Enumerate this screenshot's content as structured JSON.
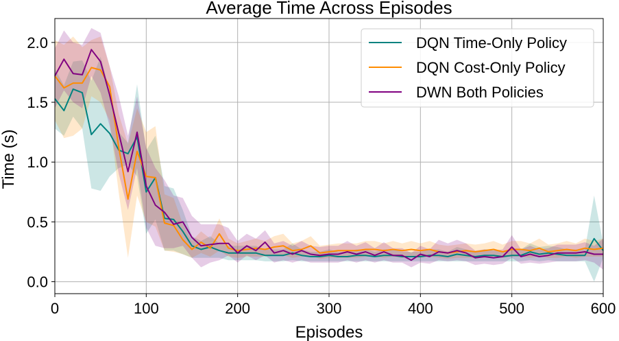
{
  "chart_data": {
    "type": "line",
    "title": "Average Time Across Episodes",
    "xlabel": "Episodes",
    "ylabel": "Time (s)",
    "xlim": [
      0,
      600
    ],
    "ylim": [
      -0.1,
      2.2
    ],
    "xticks": [
      0,
      100,
      200,
      300,
      400,
      500,
      600
    ],
    "xtick_labels": [
      "0",
      "100",
      "200",
      "300",
      "400",
      "500",
      "600"
    ],
    "yticks": [
      0.0,
      0.5,
      1.0,
      1.5,
      2.0
    ],
    "ytick_labels": [
      "0.0",
      "0.5",
      "1.0",
      "1.5",
      "2.0"
    ],
    "grid": true,
    "legend_position": "upper-right",
    "x": [
      0,
      10,
      20,
      30,
      40,
      50,
      60,
      70,
      80,
      90,
      100,
      110,
      120,
      130,
      140,
      150,
      160,
      170,
      180,
      190,
      200,
      210,
      220,
      230,
      240,
      250,
      260,
      270,
      280,
      290,
      300,
      310,
      320,
      330,
      340,
      350,
      360,
      370,
      380,
      390,
      400,
      410,
      420,
      430,
      440,
      450,
      460,
      470,
      480,
      490,
      500,
      510,
      520,
      530,
      540,
      550,
      560,
      570,
      580,
      590,
      600
    ],
    "series": [
      {
        "name": "DQN Time-Only Policy",
        "color": "#00827F",
        "values": [
          1.53,
          1.43,
          1.61,
          1.58,
          1.23,
          1.32,
          1.24,
          1.1,
          1.07,
          1.21,
          0.75,
          0.87,
          0.53,
          0.52,
          0.42,
          0.3,
          0.27,
          0.29,
          0.26,
          0.24,
          0.24,
          0.24,
          0.24,
          0.22,
          0.22,
          0.22,
          0.24,
          0.22,
          0.21,
          0.21,
          0.22,
          0.21,
          0.21,
          0.22,
          0.22,
          0.21,
          0.22,
          0.22,
          0.21,
          0.21,
          0.21,
          0.22,
          0.22,
          0.21,
          0.23,
          0.22,
          0.21,
          0.22,
          0.22,
          0.21,
          0.22,
          0.22,
          0.25,
          0.23,
          0.24,
          0.23,
          0.22,
          0.22,
          0.22,
          0.36,
          0.26
        ],
        "lower": [
          1.28,
          1.22,
          1.38,
          1.28,
          0.78,
          0.76,
          0.88,
          0.95,
          0.98,
          0.88,
          0.4,
          0.52,
          0.26,
          0.26,
          0.23,
          0.2,
          0.2,
          0.2,
          0.2,
          0.18,
          0.18,
          0.18,
          0.18,
          0.17,
          0.17,
          0.17,
          0.18,
          0.17,
          0.17,
          0.17,
          0.17,
          0.17,
          0.17,
          0.17,
          0.17,
          0.17,
          0.17,
          0.17,
          0.17,
          0.17,
          0.17,
          0.17,
          0.17,
          0.17,
          0.17,
          0.17,
          0.17,
          0.17,
          0.17,
          0.17,
          0.17,
          0.17,
          0.18,
          0.17,
          0.18,
          0.17,
          0.17,
          0.17,
          0.17,
          0.0,
          0.2
        ],
        "upper": [
          1.78,
          1.64,
          1.84,
          1.85,
          1.68,
          1.88,
          1.6,
          1.25,
          1.16,
          1.65,
          1.1,
          1.22,
          0.8,
          0.78,
          0.6,
          0.38,
          0.34,
          0.38,
          0.32,
          0.3,
          0.3,
          0.3,
          0.3,
          0.27,
          0.27,
          0.27,
          0.32,
          0.27,
          0.25,
          0.25,
          0.27,
          0.25,
          0.25,
          0.27,
          0.27,
          0.25,
          0.27,
          0.27,
          0.25,
          0.25,
          0.25,
          0.27,
          0.27,
          0.25,
          0.29,
          0.27,
          0.25,
          0.27,
          0.27,
          0.25,
          0.27,
          0.27,
          0.32,
          0.29,
          0.3,
          0.29,
          0.27,
          0.27,
          0.27,
          0.72,
          0.32
        ]
      },
      {
        "name": "DQN Cost-Only Policy",
        "color": "#FF8C00",
        "values": [
          1.72,
          1.62,
          1.66,
          1.66,
          1.79,
          1.77,
          1.63,
          1.12,
          0.69,
          1.09,
          0.88,
          0.87,
          0.49,
          0.47,
          0.35,
          0.27,
          0.33,
          0.28,
          0.4,
          0.28,
          0.26,
          0.27,
          0.28,
          0.27,
          0.29,
          0.3,
          0.26,
          0.27,
          0.3,
          0.24,
          0.25,
          0.26,
          0.26,
          0.26,
          0.27,
          0.27,
          0.26,
          0.27,
          0.26,
          0.27,
          0.26,
          0.27,
          0.25,
          0.24,
          0.25,
          0.26,
          0.25,
          0.26,
          0.27,
          0.25,
          0.27,
          0.27,
          0.26,
          0.28,
          0.25,
          0.26,
          0.27,
          0.26,
          0.28,
          0.27,
          0.28
        ],
        "lower": [
          1.35,
          1.2,
          1.22,
          1.28,
          1.55,
          1.5,
          1.35,
          0.74,
          0.2,
          0.72,
          0.5,
          0.46,
          0.26,
          0.25,
          0.23,
          0.2,
          0.24,
          0.21,
          0.26,
          0.21,
          0.2,
          0.21,
          0.21,
          0.21,
          0.22,
          0.22,
          0.2,
          0.21,
          0.22,
          0.19,
          0.2,
          0.2,
          0.2,
          0.2,
          0.21,
          0.21,
          0.2,
          0.21,
          0.2,
          0.21,
          0.2,
          0.21,
          0.2,
          0.19,
          0.2,
          0.2,
          0.2,
          0.2,
          0.21,
          0.2,
          0.21,
          0.21,
          0.2,
          0.21,
          0.2,
          0.2,
          0.21,
          0.2,
          0.21,
          0.21,
          0.21
        ],
        "upper": [
          2.02,
          1.98,
          2.05,
          1.96,
          2.02,
          2.05,
          1.8,
          1.4,
          1.15,
          1.45,
          1.25,
          1.3,
          0.73,
          0.7,
          0.48,
          0.34,
          0.42,
          0.36,
          0.53,
          0.36,
          0.32,
          0.34,
          0.36,
          0.34,
          0.38,
          0.4,
          0.32,
          0.34,
          0.38,
          0.3,
          0.31,
          0.32,
          0.32,
          0.32,
          0.34,
          0.34,
          0.32,
          0.34,
          0.32,
          0.34,
          0.32,
          0.34,
          0.31,
          0.3,
          0.31,
          0.32,
          0.31,
          0.32,
          0.34,
          0.31,
          0.34,
          0.34,
          0.32,
          0.36,
          0.31,
          0.32,
          0.34,
          0.32,
          0.36,
          0.34,
          0.36
        ]
      },
      {
        "name": "DWN Both Policies",
        "color": "#800080",
        "values": [
          1.72,
          1.86,
          1.74,
          1.73,
          1.94,
          1.84,
          1.56,
          1.24,
          0.92,
          1.25,
          0.8,
          0.64,
          0.58,
          0.48,
          0.5,
          0.37,
          0.3,
          0.31,
          0.32,
          0.32,
          0.24,
          0.3,
          0.26,
          0.33,
          0.24,
          0.26,
          0.23,
          0.26,
          0.23,
          0.22,
          0.23,
          0.23,
          0.25,
          0.23,
          0.25,
          0.22,
          0.25,
          0.22,
          0.22,
          0.18,
          0.23,
          0.21,
          0.25,
          0.24,
          0.26,
          0.24,
          0.2,
          0.21,
          0.2,
          0.21,
          0.29,
          0.21,
          0.23,
          0.21,
          0.22,
          0.24,
          0.24,
          0.24,
          0.25,
          0.23,
          0.23
        ],
        "lower": [
          1.45,
          1.6,
          1.5,
          1.45,
          1.72,
          1.58,
          1.3,
          0.9,
          0.6,
          0.95,
          0.45,
          0.3,
          0.28,
          0.28,
          0.3,
          0.2,
          0.12,
          0.16,
          0.18,
          0.22,
          0.16,
          0.22,
          0.18,
          0.22,
          0.16,
          0.18,
          0.16,
          0.18,
          0.16,
          0.16,
          0.16,
          0.16,
          0.18,
          0.16,
          0.18,
          0.16,
          0.18,
          0.16,
          0.16,
          0.12,
          0.16,
          0.15,
          0.18,
          0.17,
          0.18,
          0.17,
          0.14,
          0.15,
          0.14,
          0.15,
          0.2,
          0.15,
          0.16,
          0.15,
          0.16,
          0.17,
          0.17,
          0.17,
          0.18,
          0.16,
          0.1
        ],
        "upper": [
          1.95,
          2.1,
          2.0,
          1.98,
          2.12,
          2.08,
          1.8,
          1.55,
          1.22,
          1.55,
          1.12,
          0.95,
          0.85,
          0.72,
          0.7,
          0.55,
          0.48,
          0.48,
          0.48,
          0.45,
          0.34,
          0.4,
          0.36,
          0.43,
          0.32,
          0.34,
          0.3,
          0.34,
          0.3,
          0.29,
          0.3,
          0.3,
          0.34,
          0.3,
          0.33,
          0.28,
          0.33,
          0.28,
          0.28,
          0.24,
          0.3,
          0.27,
          0.35,
          0.32,
          0.35,
          0.32,
          0.26,
          0.27,
          0.26,
          0.27,
          0.39,
          0.27,
          0.3,
          0.27,
          0.28,
          0.31,
          0.31,
          0.31,
          0.33,
          0.3,
          0.36
        ]
      }
    ]
  }
}
